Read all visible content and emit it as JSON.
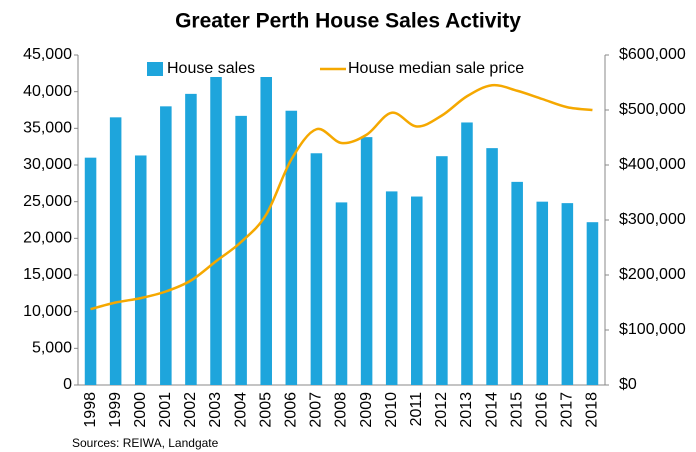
{
  "chart_data": {
    "type": "bar-line",
    "title": "Greater Perth House Sales Activity",
    "source": "Sources: REIWA, Landgate",
    "categories": [
      "1998",
      "1999",
      "2000",
      "2001",
      "2002",
      "2003",
      "2004",
      "2005",
      "2006",
      "2007",
      "2008",
      "2009",
      "2010",
      "2011",
      "2012",
      "2013",
      "2014",
      "2015",
      "2016",
      "2017",
      "2018"
    ],
    "series": [
      {
        "name": "House sales",
        "type": "bar",
        "color": "#1ea5dc",
        "values": [
          31000,
          36500,
          31300,
          38000,
          39700,
          42000,
          36700,
          42000,
          37400,
          31600,
          24900,
          33800,
          26400,
          25700,
          31200,
          35800,
          32300,
          27700,
          25000,
          24800,
          22200
        ]
      },
      {
        "name": "House median sale price",
        "type": "line",
        "axis": "y2",
        "color": "#f5a800",
        "values": [
          138000,
          150000,
          158000,
          170000,
          190000,
          225000,
          260000,
          310000,
          410000,
          465000,
          440000,
          455000,
          495000,
          470000,
          490000,
          525000,
          545000,
          535000,
          520000,
          505000,
          500000
        ]
      }
    ],
    "ylim": [
      0,
      45000
    ],
    "yticks": [
      0,
      {
        "value": 5000,
        "label": "5,000"
      },
      {
        "value": 10000,
        "label": "10,000"
      },
      {
        "value": 15000,
        "label": "15,000"
      },
      {
        "value": 20000,
        "label": "20,000"
      },
      {
        "value": 25000,
        "label": "25,000"
      },
      {
        "value": 30000,
        "label": "30,000"
      },
      {
        "value": 35000,
        "label": "35,000"
      },
      {
        "value": 40000,
        "label": "40,000"
      },
      {
        "value": 45000,
        "label": "45,000"
      }
    ],
    "y2lim": [
      0,
      600000
    ],
    "y2ticks": [
      {
        "value": 0,
        "label": "$0"
      },
      {
        "value": 100000,
        "label": "$100,000"
      },
      {
        "value": 200000,
        "label": "$200,000"
      },
      {
        "value": 300000,
        "label": "$300,000"
      },
      {
        "value": 400000,
        "label": "$400,000"
      },
      {
        "value": 500000,
        "label": "$500,000"
      },
      {
        "value": 600000,
        "label": "$600,000"
      }
    ],
    "grid": false
  }
}
